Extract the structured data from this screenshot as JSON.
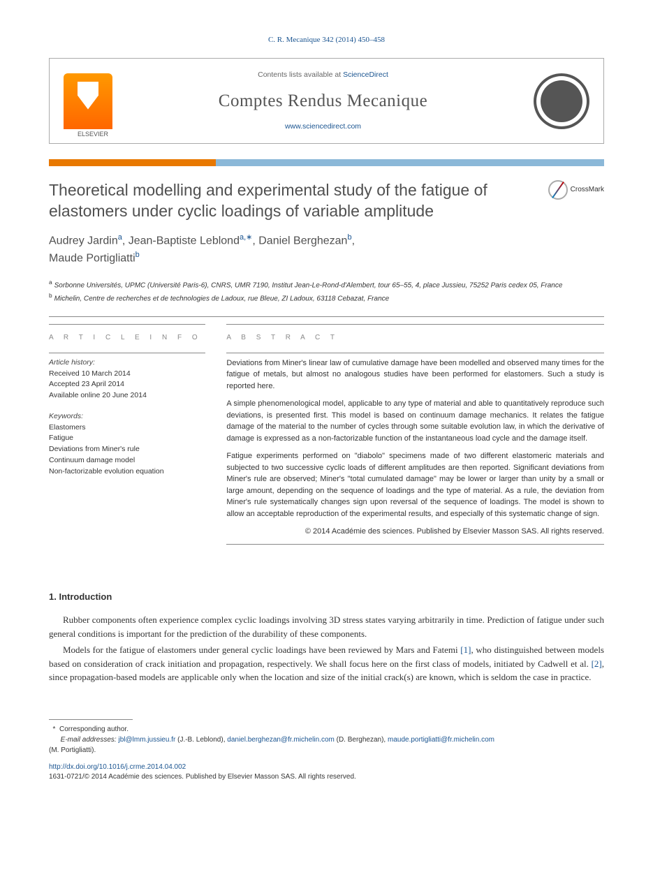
{
  "citation": "C. R. Mecanique 342 (2014) 450–458",
  "header": {
    "contents_prefix": "Contents lists available at ",
    "contents_link": "ScienceDirect",
    "journal": "Comptes Rendus Mecanique",
    "url": "www.sciencedirect.com",
    "publisher_logo_label": "ELSEVIER"
  },
  "crossmark_label": "CrossMark",
  "title": "Theoretical modelling and experimental study of the fatigue of elastomers under cyclic loadings of variable amplitude",
  "authors_html_parts": {
    "a1_name": "Audrey Jardin",
    "a1_sup": "a",
    "a2_name": "Jean-Baptiste Leblond",
    "a2_sup": "a,∗",
    "a3_name": "Daniel Berghezan",
    "a3_sup": "b",
    "a4_name": "Maude Portigliatti",
    "a4_sup": "b"
  },
  "affiliations": {
    "a": "Sorbonne Universités, UPMC (Université Paris-6), CNRS, UMR 7190, Institut Jean-Le-Rond-d'Alembert, tour 65–55, 4, place Jussieu, 75252 Paris cedex 05, France",
    "b": "Michelin, Centre de recherches et de technologies de Ladoux, rue Bleue, ZI Ladoux, 63118 Cebazat, France"
  },
  "info": {
    "section_label": "a r t i c l e   i n f o",
    "history_label": "Article history:",
    "received": "Received 10 March 2014",
    "accepted": "Accepted 23 April 2014",
    "online": "Available online 20 June 2014",
    "keywords_label": "Keywords:",
    "keywords": [
      "Elastomers",
      "Fatigue",
      "Deviations from Miner's rule",
      "Continuum damage model",
      "Non-factorizable evolution equation"
    ]
  },
  "abstract": {
    "section_label": "a b s t r a c t",
    "p1": "Deviations from Miner's linear law of cumulative damage have been modelled and observed many times for the fatigue of metals, but almost no analogous studies have been performed for elastomers. Such a study is reported here.",
    "p2": "A simple phenomenological model, applicable to any type of material and able to quantitatively reproduce such deviations, is presented first. This model is based on continuum damage mechanics. It relates the fatigue damage of the material to the number of cycles through some suitable evolution law, in which the derivative of damage is expressed as a non-factorizable function of the instantaneous load cycle and the damage itself.",
    "p3": "Fatigue experiments performed on \"diabolo\" specimens made of two different elastomeric materials and subjected to two successive cyclic loads of different amplitudes are then reported. Significant deviations from Miner's rule are observed; Miner's \"total cumulated damage\" may be lower or larger than unity by a small or large amount, depending on the sequence of loadings and the type of material. As a rule, the deviation from Miner's rule systematically changes sign upon reversal of the sequence of loadings. The model is shown to allow an acceptable reproduction of the experimental results, and especially of this systematic change of sign.",
    "copyright": "© 2014 Académie des sciences. Published by Elsevier Masson SAS. All rights reserved."
  },
  "section1": {
    "heading": "1. Introduction",
    "p1_a": "Rubber components often experience complex cyclic loadings involving 3D stress states varying arbitrarily in time. Prediction of fatigue under such general conditions is important for the prediction of the durability of these components.",
    "p2_a": "Models for the fatigue of elastomers under general cyclic loadings have been reviewed by Mars and Fatemi ",
    "p2_ref1": "[1]",
    "p2_b": ", who distinguished between models based on consideration of crack initiation and propagation, respectively. We shall focus here on the first class of models, initiated by Cadwell et al. ",
    "p2_ref2": "[2]",
    "p2_c": ", since propagation-based models are applicable only when the location and size of the initial crack(s) are known, which is seldom the case in practice."
  },
  "footnote": {
    "corr_label": "Corresponding author.",
    "emails_label": "E-mail addresses:",
    "e1": "jbl@lmm.jussieu.fr",
    "e1_who": "(J.-B. Leblond),",
    "e2": "daniel.berghezan@fr.michelin.com",
    "e2_who": "(D. Berghezan),",
    "e3": "maude.portigliatti@fr.michelin.com",
    "e3_who": "(M. Portigliatti)."
  },
  "doi": "http://dx.doi.org/10.1016/j.crme.2014.04.002",
  "issn_copy": "1631-0721/© 2014 Académie des sciences. Published by Elsevier Masson SAS. All rights reserved.",
  "colors": {
    "orange_bar": "#e87800",
    "blue_bar": "#8bb8d8",
    "link": "#1a5490",
    "heading_gray": "#505050"
  }
}
